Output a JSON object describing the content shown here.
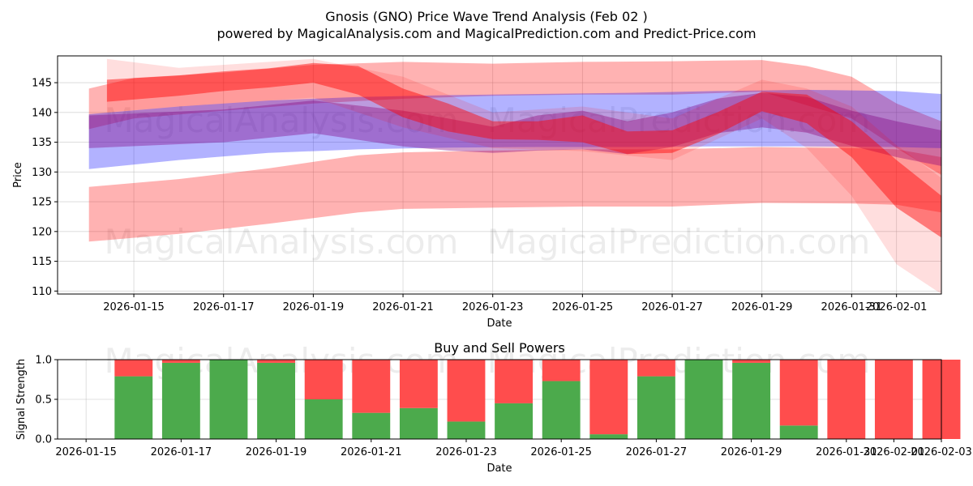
{
  "chart_data": [
    {
      "type": "area",
      "title": "Gnosis (GNO) Price Wave Trend Analysis (Feb 02 )",
      "subtitle": "powered by MagicalAnalysis.com and MagicalPrediction.com and Predict-Price.com",
      "xlabel": "Date",
      "ylabel": "Price",
      "ylim": [
        109.5,
        149.5
      ],
      "xlim_days": [
        -0.7,
        19.0
      ],
      "x_origin": "2026-01-14",
      "yticks": [
        110,
        115,
        120,
        125,
        130,
        135,
        140,
        145
      ],
      "xticks": [
        {
          "day": 1,
          "label": "2026-01-15"
        },
        {
          "day": 3,
          "label": "2026-01-17"
        },
        {
          "day": 5,
          "label": "2026-01-19"
        },
        {
          "day": 7,
          "label": "2026-01-21"
        },
        {
          "day": 9,
          "label": "2026-01-23"
        },
        {
          "day": 11,
          "label": "2026-01-25"
        },
        {
          "day": 13,
          "label": "2026-01-27"
        },
        {
          "day": 15,
          "label": "2026-01-29"
        },
        {
          "day": 17,
          "label": "2026-01-31"
        },
        {
          "day": 18,
          "label": "2026-02-01"
        }
      ],
      "watermarks": [
        "MagicalAnalysis.com",
        "MagicalPrediction.com"
      ],
      "grid": true,
      "series": [
        {
          "name": "upper-envelope",
          "color": "#ff0000",
          "opacity": 0.3,
          "x": [
            0,
            1,
            3,
            5,
            7,
            9,
            11,
            13,
            15,
            16,
            17,
            18,
            19
          ],
          "upper": [
            144.0,
            145.8,
            146.7,
            148.0,
            148.5,
            148.2,
            148.5,
            148.6,
            148.8,
            147.8,
            146.0,
            141.5,
            138.5
          ],
          "lower": [
            137.2,
            139.0,
            140.3,
            141.5,
            142.3,
            142.8,
            143.0,
            143.0,
            143.5,
            141.2,
            139.0,
            134.0,
            129.5
          ]
        },
        {
          "name": "lower-envelope",
          "color": "#ff0000",
          "opacity": 0.3,
          "x": [
            0,
            2,
            4,
            6,
            7,
            9,
            11,
            13,
            15,
            17,
            18,
            19
          ],
          "upper": [
            127.5,
            128.8,
            130.6,
            132.8,
            133.3,
            133.6,
            133.8,
            133.8,
            134.2,
            134.0,
            133.8,
            132.5
          ],
          "lower": [
            118.3,
            119.6,
            121.3,
            123.2,
            123.8,
            124.0,
            124.2,
            124.2,
            124.8,
            124.7,
            124.5,
            123.2
          ]
        },
        {
          "name": "blue-channel",
          "color": "#0000ff",
          "opacity": 0.3,
          "x": [
            0,
            2,
            4,
            6,
            8,
            10,
            12,
            14,
            16,
            18,
            19
          ],
          "upper": [
            139.7,
            141.0,
            142.0,
            142.6,
            142.9,
            143.1,
            143.3,
            143.6,
            143.8,
            143.6,
            143.1
          ],
          "lower": [
            130.5,
            132.0,
            133.2,
            133.8,
            134.1,
            134.2,
            134.2,
            134.3,
            134.3,
            134.2,
            134.0
          ]
        },
        {
          "name": "purple-wave",
          "color": "#800080",
          "opacity": 0.38,
          "x": [
            0,
            3,
            5,
            7,
            8,
            9,
            10,
            11,
            12,
            13,
            14,
            15,
            16,
            17,
            18,
            19
          ],
          "upper": [
            139.5,
            140.5,
            142.0,
            140.3,
            139.0,
            137.6,
            139.5,
            140.3,
            138.5,
            140.0,
            142.3,
            143.3,
            142.6,
            140.3,
            138.5,
            137.0
          ],
          "lower": [
            134.0,
            135.0,
            136.5,
            134.3,
            133.6,
            133.2,
            133.6,
            133.8,
            133.0,
            134.2,
            136.5,
            137.5,
            136.6,
            134.4,
            132.5,
            131.0
          ]
        },
        {
          "name": "red-wave",
          "color": "#ff0000",
          "opacity": 0.45,
          "x": [
            0.4,
            2,
            3,
            4,
            5,
            6,
            7,
            8,
            9,
            10,
            11,
            12,
            13,
            14,
            15,
            16,
            17,
            18,
            19
          ],
          "upper": [
            145.5,
            146.2,
            146.9,
            147.4,
            148.3,
            147.8,
            144.0,
            141.5,
            138.5,
            138.5,
            139.5,
            136.8,
            137.0,
            140.0,
            143.5,
            143.0,
            138.5,
            132.0,
            126.0
          ],
          "lower": [
            141.8,
            142.8,
            143.6,
            144.2,
            145.0,
            143.0,
            139.2,
            136.8,
            135.5,
            135.4,
            135.0,
            133.0,
            133.2,
            136.3,
            140.2,
            138.2,
            132.5,
            124.0,
            119.0
          ]
        },
        {
          "name": "red-wave-spread",
          "color": "#ff0000",
          "opacity": 0.13,
          "x": [
            0.4,
            2,
            5,
            7,
            9,
            11,
            13,
            15,
            16,
            17,
            18,
            19
          ],
          "upper": [
            149.0,
            147.5,
            149.0,
            146.0,
            140.0,
            141.0,
            139.0,
            145.5,
            144.0,
            141.0,
            134.5,
            129.0
          ],
          "lower": [
            140.0,
            141.0,
            142.5,
            137.5,
            134.0,
            133.5,
            132.0,
            139.0,
            134.0,
            126.0,
            114.5,
            109.5
          ]
        }
      ]
    },
    {
      "type": "bar",
      "title": "Buy and Sell Powers",
      "xlabel": "Date",
      "ylabel": "Signal Strength",
      "ylim": [
        0,
        1
      ],
      "xlim_days": [
        -0.6,
        18.0
      ],
      "x_origin": "2026-01-15",
      "yticks": [
        {
          "value": 0.0,
          "label": "0.0"
        },
        {
          "value": 0.5,
          "label": "0.5"
        },
        {
          "value": 1.0,
          "label": "1.0"
        }
      ],
      "xticks": [
        {
          "day": 0,
          "label": "2026-01-15"
        },
        {
          "day": 2,
          "label": "2026-01-17"
        },
        {
          "day": 4,
          "label": "2026-01-19"
        },
        {
          "day": 6,
          "label": "2026-01-21"
        },
        {
          "day": 8,
          "label": "2026-01-23"
        },
        {
          "day": 10,
          "label": "2026-01-25"
        },
        {
          "day": 12,
          "label": "2026-01-27"
        },
        {
          "day": 14,
          "label": "2026-01-29"
        },
        {
          "day": 16,
          "label": "2026-01-31"
        },
        {
          "day": 17,
          "label": "2026-02-01"
        },
        {
          "day": 18,
          "label": "2026-02-03"
        }
      ],
      "watermarks": [
        "MagicalAnalysis.com",
        "MagicalPrediction.com"
      ],
      "buy_color": "#4caa4c",
      "sell_color": "#ff4d4d",
      "categories": [
        "2026-01-16",
        "2026-01-17",
        "2026-01-18",
        "2026-01-19",
        "2026-01-20",
        "2026-01-21",
        "2026-01-22",
        "2026-01-23",
        "2026-01-24",
        "2026-01-25",
        "2026-01-26",
        "2026-01-27",
        "2026-01-28",
        "2026-01-29",
        "2026-01-30",
        "2026-01-31",
        "2026-02-01",
        "2026-02-02"
      ],
      "series": [
        {
          "name": "Buy",
          "values": [
            0.79,
            0.96,
            1.0,
            0.96,
            0.5,
            0.33,
            0.39,
            0.22,
            0.45,
            0.73,
            0.06,
            0.79,
            1.0,
            0.96,
            0.17,
            0.0,
            0.0,
            0.0
          ]
        },
        {
          "name": "Sell",
          "values": [
            0.21,
            0.04,
            0.0,
            0.04,
            0.5,
            0.67,
            0.61,
            0.78,
            0.55,
            0.27,
            0.94,
            0.21,
            0.0,
            0.04,
            0.83,
            1.0,
            1.0,
            1.0
          ]
        }
      ]
    }
  ]
}
